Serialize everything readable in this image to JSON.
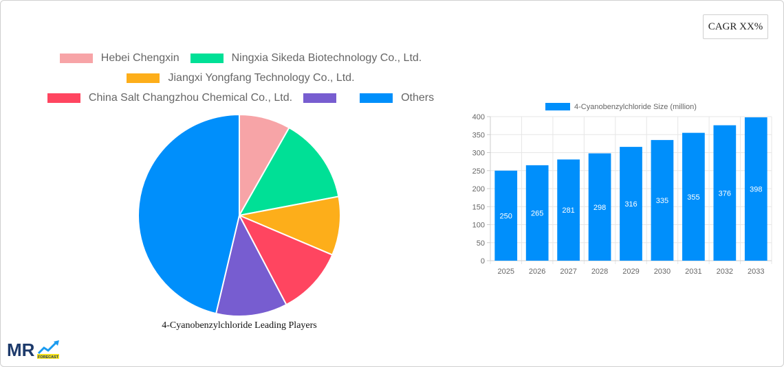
{
  "cagr_badge": {
    "label": "CAGR XX%"
  },
  "pie_legend": {
    "rows": [
      [
        {
          "label": "Hebei Chengxin",
          "color": "#F7A4A7"
        },
        {
          "label": "Ningxia Sikeda Biotechnology Co., Ltd.",
          "color": "#00E096"
        }
      ],
      [
        {
          "label": "Jiangxi Yongfang Technology Co., Ltd.",
          "color": "#FDAE1A"
        }
      ],
      [
        {
          "label": "China Salt Changzhou Chemical Co., Ltd.",
          "color": "#FF4560"
        },
        {
          "label": "",
          "color": "#775DD0"
        },
        {
          "label": "Others",
          "color": "#008FFB"
        }
      ]
    ]
  },
  "pie_title": "4-Cyanobenzylchloride Leading Players",
  "bar_legend": {
    "label": "4-Cyanobenzylchloride Size (million)",
    "color": "#008FFB"
  },
  "logo": {
    "text": "MR",
    "sub": "FORECAST"
  },
  "chart_data": [
    {
      "type": "pie",
      "title": "4-Cyanobenzylchloride Leading Players",
      "legend_position": "top",
      "categories": [
        "Hebei Chengxin",
        "Ningxia Sikeda Biotechnology Co., Ltd.",
        "Jiangxi Yongfang Technology Co., Ltd.",
        "China Salt Changzhou Chemical Co., Ltd.",
        "",
        "Others"
      ],
      "values": [
        8.2,
        13.8,
        9.4,
        10.9,
        11.4,
        46.3
      ],
      "colors": [
        "#F7A4A7",
        "#00E096",
        "#FDAE1A",
        "#FF4560",
        "#775DD0",
        "#008FFB"
      ]
    },
    {
      "type": "bar",
      "title": "",
      "legend": [
        "4-Cyanobenzylchloride Size (million)"
      ],
      "legend_position": "top",
      "categories": [
        "2025",
        "2026",
        "2027",
        "2028",
        "2029",
        "2030",
        "2031",
        "2032",
        "2033"
      ],
      "series": [
        {
          "name": "4-Cyanobenzylchloride Size (million)",
          "values": [
            250,
            265,
            281,
            298,
            316,
            335,
            355,
            376,
            398
          ]
        }
      ],
      "xlabel": "",
      "ylabel": "",
      "ylim": [
        0,
        400
      ],
      "yticks": [
        0,
        50,
        100,
        150,
        200,
        250,
        300,
        350,
        400
      ],
      "grid": true,
      "data_labels": true
    }
  ]
}
